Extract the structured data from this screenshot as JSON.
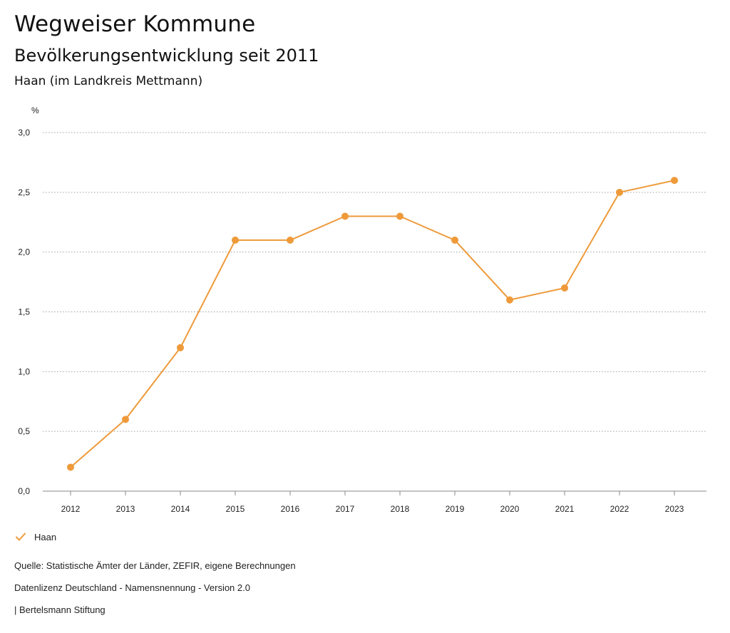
{
  "header": {
    "title": "Wegweiser Kommune",
    "subtitle": "Bevölkerungsentwicklung seit 2011",
    "region": "Haan (im Landkreis Mettmann)"
  },
  "colors": {
    "series": "#EE9A3A",
    "grid": "#9aa0a6",
    "axis": "#888888",
    "text": "#222222"
  },
  "chart_data": {
    "type": "line",
    "title": "Bevölkerungsentwicklung seit 2011",
    "ylabel": "%",
    "xlabel": "",
    "categories": [
      "2012",
      "2013",
      "2014",
      "2015",
      "2016",
      "2017",
      "2018",
      "2019",
      "2020",
      "2021",
      "2022",
      "2023"
    ],
    "ylim": [
      0,
      3
    ],
    "yticks": [
      "0,0",
      "0,5",
      "1,0",
      "1,5",
      "2,0",
      "2,5",
      "3,0"
    ],
    "series": [
      {
        "name": "Haan",
        "values": [
          0.2,
          0.6,
          1.2,
          2.1,
          2.1,
          2.3,
          2.3,
          2.1,
          1.6,
          1.7,
          2.5,
          2.6
        ]
      }
    ],
    "legend": "bottom-left",
    "grid": true
  },
  "legend": {
    "label": "Haan"
  },
  "footer": {
    "source": "Quelle: Statistische Ämter der Länder, ZEFIR, eigene Berechnungen",
    "license": "Datenlizenz Deutschland - Namensnennung - Version 2.0",
    "publisher": "| Bertelsmann Stiftung"
  }
}
